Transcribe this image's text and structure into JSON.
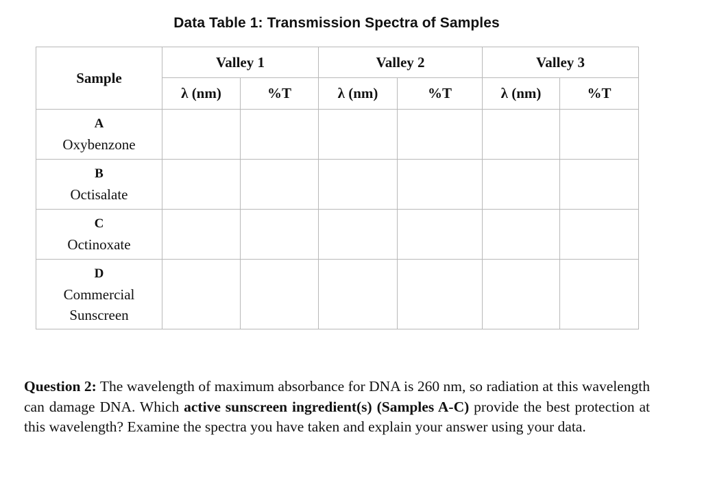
{
  "title": "Data Table 1: Transmission Spectra of Samples",
  "table": {
    "sample_header": "Sample",
    "valleys": [
      "Valley 1",
      "Valley 2",
      "Valley 3"
    ],
    "sub_headers": [
      "λ (nm)",
      "%T"
    ],
    "rows": [
      {
        "letter": "A",
        "name_lines": [
          "Oxybenzone"
        ]
      },
      {
        "letter": "B",
        "name_lines": [
          "Octisalate"
        ]
      },
      {
        "letter": "C",
        "name_lines": [
          "Octinoxate"
        ]
      },
      {
        "letter": "D",
        "name_lines": [
          "Commercial",
          "Sunscreen"
        ]
      }
    ]
  },
  "question": {
    "label": "Question 2:",
    "text_1": " The wavelength of maximum absorbance for DNA is 260 nm, so radiation at this wavelength can damage DNA. Which ",
    "bold_1": "active sunscreen ingredient(s) (Samples A-C)",
    "text_2": " provide the best protection at this wavelength? Examine the spectra you have taken and explain your answer using your data."
  }
}
